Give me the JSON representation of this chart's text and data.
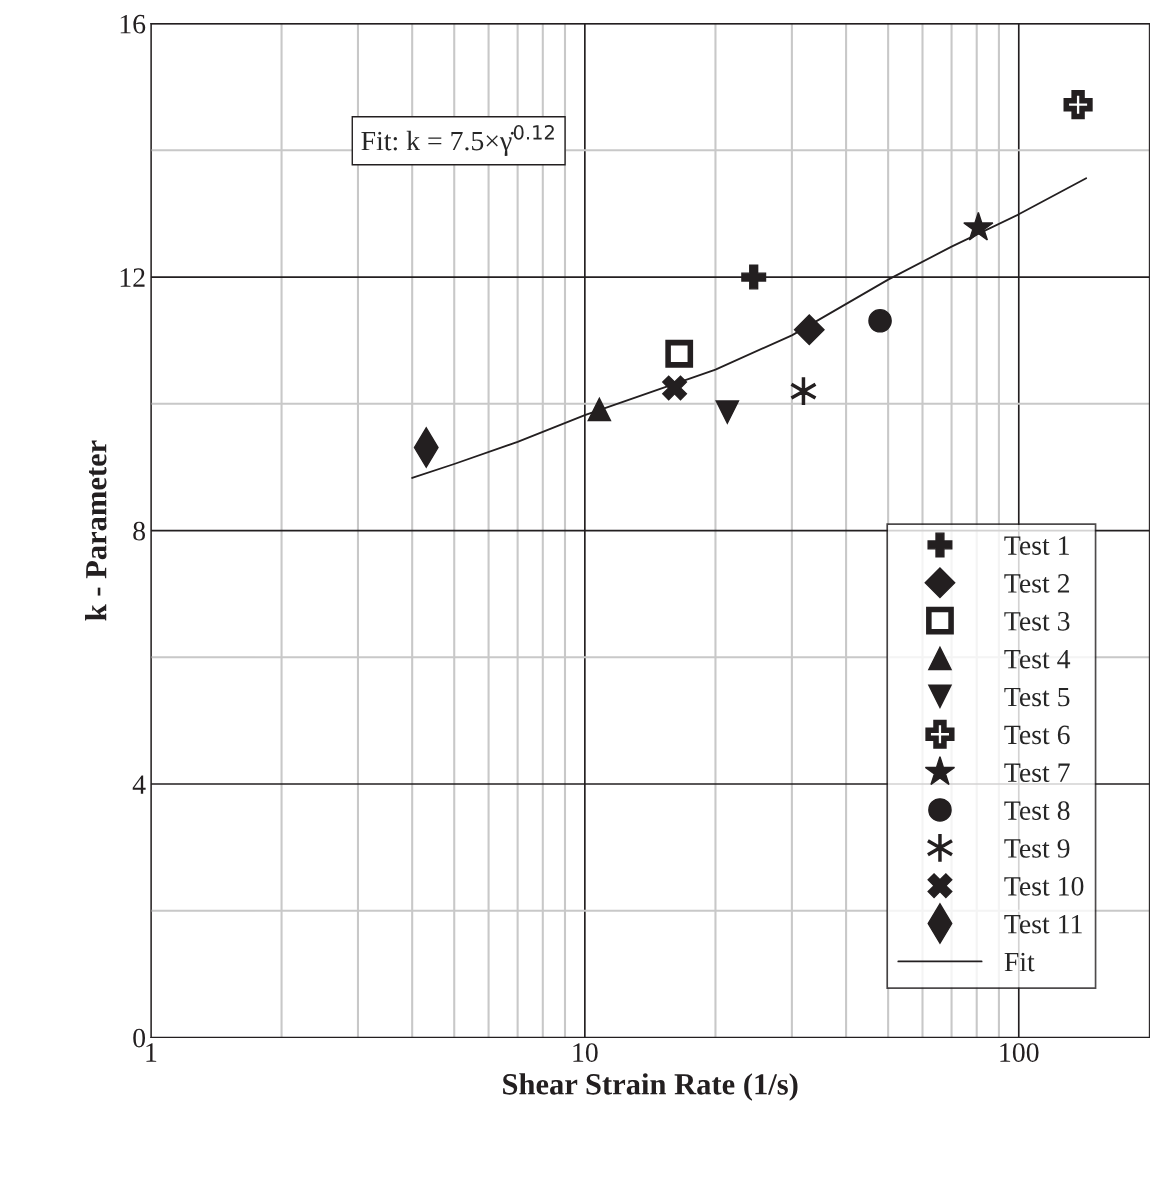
{
  "chart_data": {
    "type": "scatter",
    "xlabel": "Shear Strain Rate (1/s)",
    "ylabel": "k - Parameter",
    "log": "x",
    "grid": true,
    "legend": "right",
    "xlim": [
      1,
      200
    ],
    "xticks": [
      1,
      {
        "value": 2,
        "label": null
      },
      {
        "value": 3,
        "label": null
      },
      {
        "value": 4,
        "label": null
      },
      {
        "value": 5,
        "label": null
      },
      {
        "value": 6,
        "label": null
      },
      {
        "value": 7,
        "label": null
      },
      {
        "value": 8,
        "label": null
      },
      {
        "value": 9,
        "label": null
      },
      10,
      {
        "value": 20,
        "label": null
      },
      {
        "value": 30,
        "label": null
      },
      {
        "value": 40,
        "label": null
      },
      {
        "value": 50,
        "label": null
      },
      {
        "value": 60,
        "label": null
      },
      {
        "value": 70,
        "label": null
      },
      {
        "value": 80,
        "label": null
      },
      {
        "value": 90,
        "label": null
      },
      100
    ],
    "ylim": [
      0,
      16
    ],
    "yticks": [
      0,
      {
        "value": 2,
        "label": null
      },
      4,
      {
        "value": 6,
        "label": null
      },
      8,
      {
        "value": 10,
        "label": null
      },
      12,
      {
        "value": 14,
        "label": null
      },
      16
    ],
    "annotations": [
      "Fit: k = 7.5×γ̇$^{0.12}$"
    ],
    "series": [
      {
        "name": "Test 1",
        "color": "#231f20",
        "marker": "cross",
        "x": [
          24.5
        ],
        "values": [
          12.0
        ]
      },
      {
        "name": "Test 2",
        "color": "#231f20",
        "marker": "diamond",
        "x": [
          32.9
        ],
        "values": [
          11.17
        ]
      },
      {
        "name": "Test 3",
        "color": "#231f20",
        "marker": "square",
        "x": [
          16.5
        ],
        "values": [
          10.79
        ]
      },
      {
        "name": "Test 4",
        "color": "#231f20",
        "marker": "triangle",
        "x": [
          10.8
        ],
        "values": [
          9.91
        ]
      },
      {
        "name": "Test 5",
        "color": "#231f20",
        "marker": "triangle",
        "x": [
          21.3
        ],
        "values": [
          9.87
        ]
      },
      {
        "name": "Test 6",
        "color": "#231f20",
        "marker": "cross",
        "x": [
          137
        ],
        "values": [
          14.72
        ]
      },
      {
        "name": "Test 7",
        "color": "#231f20",
        "marker": "star",
        "x": [
          80.7
        ],
        "values": [
          12.78
        ]
      },
      {
        "name": "Test 8",
        "color": "#231f20",
        "marker": "circle",
        "x": [
          47.9
        ],
        "values": [
          11.31
        ]
      },
      {
        "name": "Test 9",
        "color": "#231f20",
        "marker": "cross",
        "x": [
          31.9
        ],
        "values": [
          10.2
        ]
      },
      {
        "name": "Test 10",
        "color": "#231f20",
        "marker": "cross",
        "x": [
          16.1
        ],
        "values": [
          10.25
        ]
      },
      {
        "name": "Test 11",
        "color": "#231f20",
        "marker": "diamond",
        "x": [
          4.31
        ],
        "values": [
          9.31
        ]
      },
      {
        "name": "Fit",
        "type": "line",
        "color": "#231f20",
        "marker": "none",
        "line_style": "solid",
        "x": [
          4.0,
          5,
          7,
          10,
          20,
          30,
          50,
          70,
          100,
          143
        ],
        "values": [
          8.83,
          9.05,
          9.4,
          9.82,
          10.54,
          11.08,
          11.96,
          12.48,
          12.99,
          13.56
        ]
      }
    ]
  }
}
